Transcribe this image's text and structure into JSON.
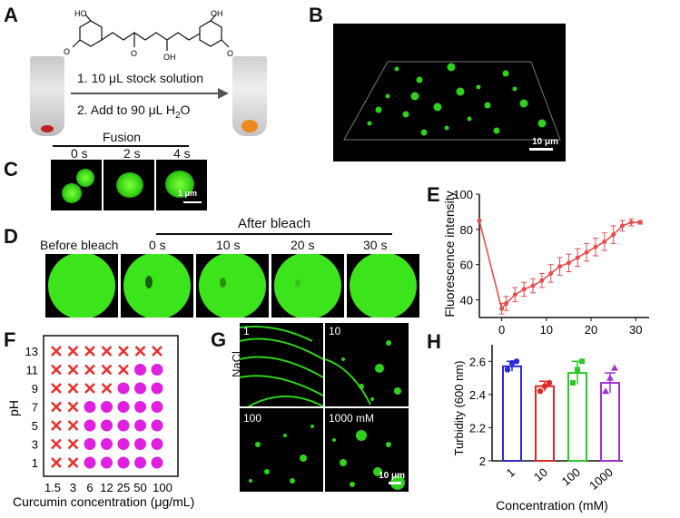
{
  "panels": {
    "A": {
      "label": "A",
      "mol_labels": [
        "HO",
        "O",
        "O",
        "OH",
        "OH",
        "O"
      ],
      "step1": "1. 10 μL stock solution",
      "step2": "2. Add to 90 μL H",
      "step2_sub": "2",
      "step2_end": "O"
    },
    "B": {
      "label": "B",
      "scale": "10 μm"
    },
    "C": {
      "label": "C",
      "title": "Fusion",
      "times": [
        "0 s",
        "2 s",
        "4 s"
      ],
      "scale": "1 μm"
    },
    "D": {
      "label": "D",
      "before": "Before bleach",
      "after": "After bleach",
      "times": [
        "0 s",
        "10 s",
        "20 s",
        "30 s"
      ]
    },
    "E": {
      "label": "E"
    },
    "F": {
      "label": "F"
    },
    "G": {
      "label": "G",
      "side": "NaCl",
      "tiles": [
        "1",
        "10",
        "100",
        "1000 mM"
      ],
      "scale": "10 μm"
    },
    "H": {
      "label": "H"
    }
  },
  "chart_data": [
    {
      "id": "E",
      "type": "line",
      "ylabel": "Fluorescence intensity",
      "xlabel": "",
      "xlim": [
        -5,
        33
      ],
      "ylim": [
        30,
        100
      ],
      "xticks": [
        0,
        10,
        20,
        30
      ],
      "yticks": [
        40,
        60,
        80,
        100
      ],
      "color": "#e84c4c",
      "x": [
        -5,
        0,
        1,
        3,
        5,
        7,
        9,
        11,
        13,
        15,
        17,
        19,
        21,
        23,
        25,
        27,
        29,
        31
      ],
      "y": [
        85,
        35,
        38,
        43,
        46,
        48,
        51,
        55,
        59,
        61,
        64,
        67,
        70,
        73,
        77,
        82,
        84,
        84
      ],
      "err": [
        0,
        3,
        4,
        4,
        4,
        4,
        4,
        5,
        5,
        5,
        5,
        5,
        5,
        5,
        5,
        3,
        2,
        1
      ]
    },
    {
      "id": "F",
      "type": "scatter",
      "xlabel": "Curcumin concentration  (μg/mL)",
      "ylabel": "pH",
      "x_categories": [
        "1.5",
        "3",
        "6",
        "12",
        "25",
        "50",
        "100"
      ],
      "y_categories": [
        "13",
        "11",
        "9",
        "7",
        "5",
        "3",
        "1"
      ],
      "legend": {
        "cross": "#e83030",
        "dot": "#e020e0"
      },
      "grid": [
        [
          "x",
          "x",
          "x",
          "x",
          "x",
          "x",
          "x"
        ],
        [
          "x",
          "x",
          "x",
          "x",
          "x",
          "o",
          "o"
        ],
        [
          "x",
          "x",
          "x",
          "x",
          "o",
          "o",
          "o"
        ],
        [
          "x",
          "x",
          "o",
          "o",
          "o",
          "o",
          "o"
        ],
        [
          "x",
          "x",
          "o",
          "o",
          "o",
          "o",
          "o"
        ],
        [
          "x",
          "x",
          "o",
          "o",
          "o",
          "o",
          "o"
        ],
        [
          "x",
          "x",
          "o",
          "o",
          "o",
          "o",
          "o"
        ]
      ]
    },
    {
      "id": "H",
      "type": "bar",
      "categories": [
        "1",
        "10",
        "100",
        "1000"
      ],
      "values": [
        2.57,
        2.45,
        2.53,
        2.47
      ],
      "errors": [
        0.03,
        0.03,
        0.07,
        0.06
      ],
      "points": [
        [
          2.55,
          2.59,
          2.6
        ],
        [
          2.42,
          2.45,
          2.47
        ],
        [
          2.47,
          2.55,
          2.6
        ],
        [
          2.42,
          2.5,
          2.56
        ]
      ],
      "colors": [
        "#2a2ad8",
        "#e02828",
        "#2ac82a",
        "#a030d0"
      ],
      "markers": [
        "circle",
        "circle",
        "square",
        "triangle"
      ],
      "xlabel": "Concentration (mM)",
      "ylabel": "Turbidity (600 nm)",
      "ylim": [
        2,
        2.7
      ],
      "yticks": [
        2,
        2.2,
        2.4,
        2.6
      ]
    }
  ]
}
